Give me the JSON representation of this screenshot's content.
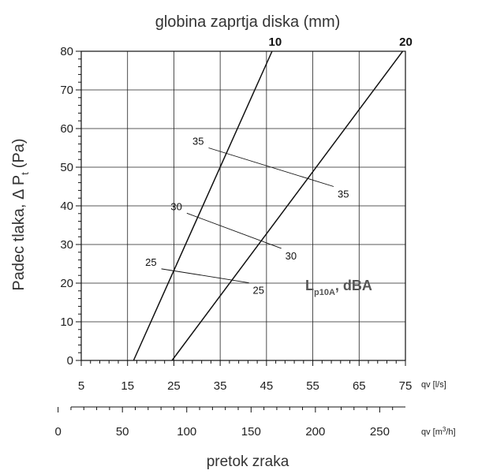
{
  "chart_data": {
    "type": "line",
    "title": "globina zaprtja diska (mm)",
    "xlabel": "pretok zraka",
    "ylabel": "Padec tlaka, Δ P",
    "ylabel_sub": "t",
    "ylabel_unit": "(Pa)",
    "ylim": [
      0,
      80
    ],
    "xlim": [
      5,
      75
    ],
    "y_ticks": [
      0,
      10,
      20,
      30,
      40,
      50,
      60,
      70,
      80
    ],
    "x_ticks": [
      5,
      15,
      25,
      35,
      45,
      55,
      65,
      75
    ],
    "x_unit": "qv [l/s]",
    "x2_ticks": [
      0,
      50,
      100,
      150,
      200,
      250
    ],
    "x2_unit_main": "qv [m",
    "x2_unit_sup": "3",
    "x2_unit_end": "/h]",
    "x2_factor_l_s_per_m3_h": 0.2778,
    "grid": true,
    "series": [
      {
        "name": "10",
        "x": [
          16.3,
          46.2
        ],
        "y": [
          0,
          80
        ]
      },
      {
        "name": "20",
        "x": [
          24.6,
          74.4
        ],
        "y": [
          0,
          80
        ]
      }
    ],
    "iso_noise_lines": [
      {
        "label_left": "25",
        "label_right": "25",
        "x": [
          22.3,
          41.2
        ],
        "y": [
          23.7,
          20.1
        ]
      },
      {
        "label_left": "30",
        "label_right": "30",
        "x": [
          27.8,
          48.2
        ],
        "y": [
          38.1,
          29.0
        ]
      },
      {
        "label_left": "35",
        "label_right": "35",
        "x": [
          32.5,
          59.5
        ],
        "y": [
          55.0,
          45.0
        ]
      }
    ],
    "annotation": {
      "main": "L",
      "sub": "p10A",
      "end": ", dBA"
    }
  }
}
